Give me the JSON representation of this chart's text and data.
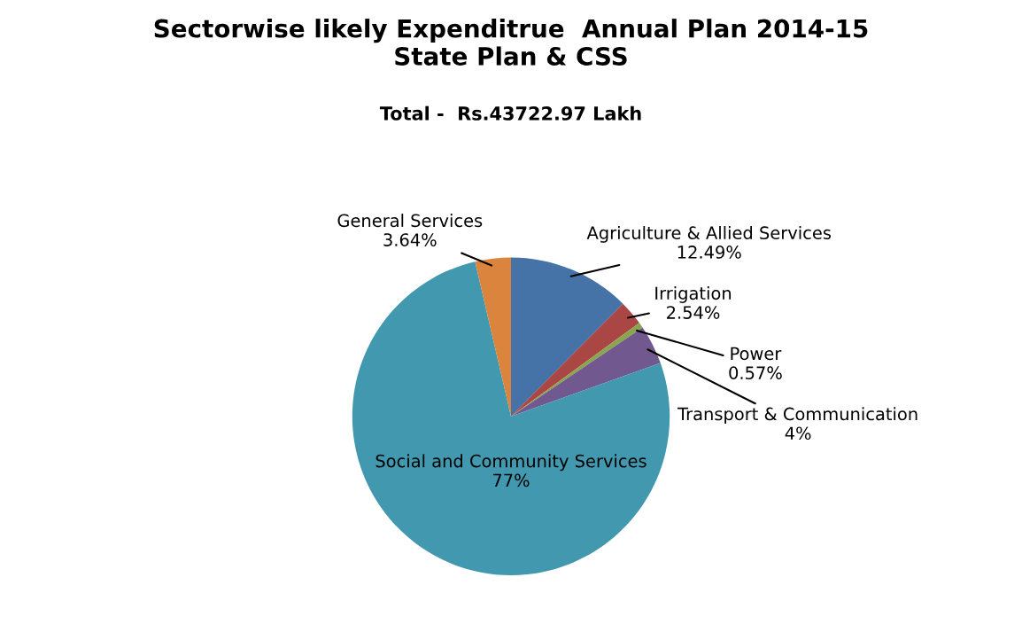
{
  "chart_data": {
    "type": "pie",
    "title": "Sectorwise likely Expenditrue  Annual Plan 2014-15\nState Plan & CSS",
    "subtitle": "Total -  Rs.43722.97 Lakh",
    "categories": [
      "Agriculture & Allied Services",
      "Irrigation",
      "Power",
      "Transport & Communication",
      "Social and Community Services",
      "General Services"
    ],
    "values": [
      12.49,
      2.54,
      0.57,
      4,
      77,
      3.64
    ],
    "colors": [
      "#4572a7",
      "#aa4643",
      "#89a54e",
      "#71588f",
      "#4198af",
      "#db843d"
    ],
    "value_labels": [
      "12.49%",
      "2.54%",
      "0.57%",
      "4%",
      "77%",
      "3.64%"
    ],
    "legend": false
  }
}
